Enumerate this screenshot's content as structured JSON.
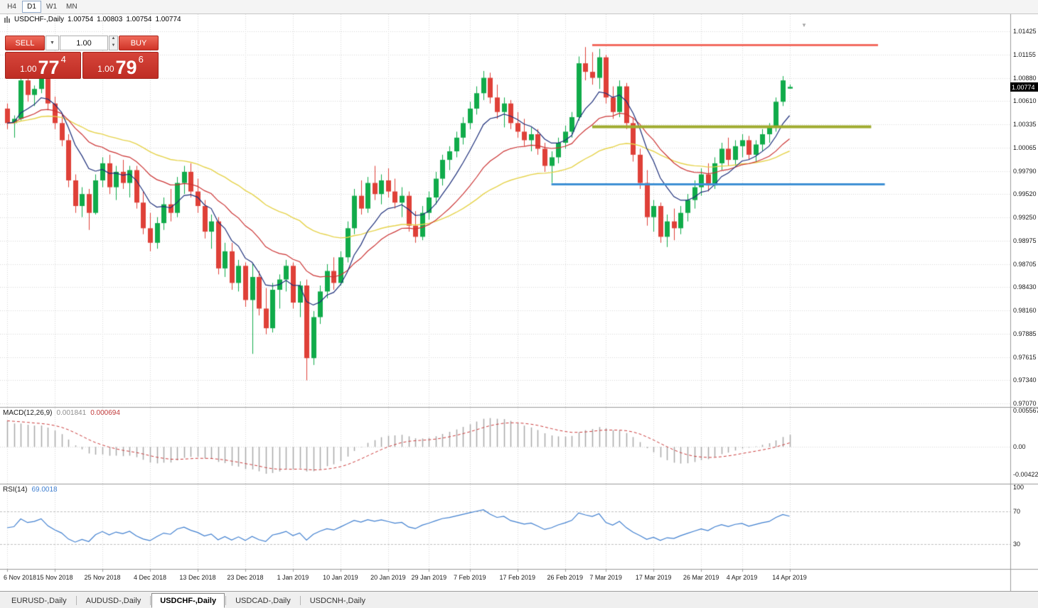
{
  "toolbar": {
    "timeframes": [
      {
        "label": "H4",
        "active": false
      },
      {
        "label": "D1",
        "active": true
      },
      {
        "label": "W1",
        "active": false
      },
      {
        "label": "MN",
        "active": false
      }
    ]
  },
  "chart_header": {
    "symbol": "USDCHF-,Daily",
    "open": "1.00754",
    "high": "1.00803",
    "low": "1.00754",
    "close": "1.00774"
  },
  "trade_panel": {
    "sell_label": "SELL",
    "buy_label": "BUY",
    "volume": "1.00",
    "sell_price": {
      "prefix": "1.00",
      "big": "77",
      "sup": "4"
    },
    "buy_price": {
      "prefix": "1.00",
      "big": "79",
      "sup": "6"
    }
  },
  "icons": {
    "volume_dropdown": "▼",
    "spin_up": "▲",
    "spin_down": "▼",
    "chart_shift": "▼"
  },
  "price_tag": "1.00774",
  "macd_header": {
    "name": "MACD(12,26,9)",
    "value": "0.001841",
    "signal": "0.000694"
  },
  "rsi_header": {
    "name": "RSI(14)",
    "value": "69.0018"
  },
  "tabbar": {
    "tabs": [
      {
        "label": "EURUSD-,Daily",
        "active": false
      },
      {
        "label": "AUDUSD-,Daily",
        "active": false
      },
      {
        "label": "USDCHF-,Daily",
        "active": true
      },
      {
        "label": "USDCAD-,Daily",
        "active": false
      },
      {
        "label": "USDCNH-,Daily",
        "active": false
      }
    ]
  },
  "chart_data": {
    "type": "candlestick",
    "symbol": "USDCHF-",
    "timeframe": "Daily",
    "current_price": 1.00774,
    "price_axis_ticks": [
      1.01425,
      1.01155,
      1.0088,
      1.0061,
      1.00335,
      1.00065,
      0.9979,
      0.9952,
      0.9925,
      0.98975,
      0.98705,
      0.9843,
      0.9816,
      0.97885,
      0.97615,
      0.9734,
      0.9707
    ],
    "macd_axis_labels": {
      "top": "0.0055677",
      "zero": "0.00",
      "bottom": "-0.0042264"
    },
    "rsi_axis_labels": {
      "top": "100",
      "upper": "70",
      "lower": "30"
    },
    "rsi_levels": [
      70,
      30
    ],
    "date_ticks": [
      {
        "label": "6 Nov 2018",
        "index": 0
      },
      {
        "label": "15 Nov 2018",
        "index": 7
      },
      {
        "label": "25 Nov 2018",
        "index": 14
      },
      {
        "label": "4 Dec 2018",
        "index": 21
      },
      {
        "label": "13 Dec 2018",
        "index": 28
      },
      {
        "label": "23 Dec 2018",
        "index": 35
      },
      {
        "label": "1 Jan 2019",
        "index": 42
      },
      {
        "label": "10 Jan 2019",
        "index": 49
      },
      {
        "label": "20 Jan 2019",
        "index": 56
      },
      {
        "label": "29 Jan 2019",
        "index": 62
      },
      {
        "label": "7 Feb 2019",
        "index": 68
      },
      {
        "label": "17 Feb 2019",
        "index": 75
      },
      {
        "label": "26 Feb 2019",
        "index": 82
      },
      {
        "label": "7 Mar 2019",
        "index": 88
      },
      {
        "label": "17 Mar 2019",
        "index": 95
      },
      {
        "label": "26 Mar 2019",
        "index": 102
      },
      {
        "label": "4 Apr 2019",
        "index": 108
      },
      {
        "label": "14 Apr 2019",
        "index": 115
      }
    ],
    "candles": [
      [
        1.0052,
        1.0058,
        1.0028,
        1.0035
      ],
      [
        1.0035,
        1.0044,
        1.0018,
        1.004
      ],
      [
        1.004,
        1.009,
        1.0038,
        1.0085
      ],
      [
        1.0085,
        1.0094,
        1.006,
        1.0068
      ],
      [
        1.0068,
        1.0079,
        1.0055,
        1.0075
      ],
      [
        1.0075,
        1.01,
        1.007,
        1.0092
      ],
      [
        1.0092,
        1.0095,
        1.005,
        1.0058
      ],
      [
        1.0058,
        1.0066,
        1.0028,
        1.0035
      ],
      [
        1.0035,
        1.0045,
        1.0008,
        1.0015
      ],
      [
        1.0015,
        1.0022,
        0.996,
        0.9968
      ],
      [
        0.9968,
        0.9975,
        0.993,
        0.9938
      ],
      [
        0.9938,
        0.996,
        0.9925,
        0.9952
      ],
      [
        0.9952,
        0.9958,
        0.991,
        0.993
      ],
      [
        0.993,
        0.9975,
        0.9928,
        0.9968
      ],
      [
        0.9968,
        0.9995,
        0.996,
        0.9988
      ],
      [
        0.9988,
        0.9998,
        0.9952,
        0.996
      ],
      [
        0.996,
        0.9985,
        0.9945,
        0.9978
      ],
      [
        0.9978,
        0.9992,
        0.9958,
        0.9965
      ],
      [
        0.9965,
        0.9985,
        0.9948,
        0.998
      ],
      [
        0.998,
        0.9985,
        0.9935,
        0.9942
      ],
      [
        0.9942,
        0.9955,
        0.9905,
        0.9912
      ],
      [
        0.9912,
        0.993,
        0.9885,
        0.9895
      ],
      [
        0.9895,
        0.9925,
        0.9888,
        0.9918
      ],
      [
        0.9918,
        0.9948,
        0.991,
        0.994
      ],
      [
        0.994,
        0.9958,
        0.992,
        0.993
      ],
      [
        0.993,
        0.9972,
        0.9925,
        0.9965
      ],
      [
        0.9965,
        0.9985,
        0.9952,
        0.9978
      ],
      [
        0.9978,
        0.9988,
        0.9948,
        0.9955
      ],
      [
        0.9955,
        0.997,
        0.993,
        0.9938
      ],
      [
        0.9938,
        0.9945,
        0.99,
        0.9908
      ],
      [
        0.9908,
        0.9928,
        0.9888,
        0.992
      ],
      [
        0.992,
        0.9925,
        0.9858,
        0.9865
      ],
      [
        0.9865,
        0.9895,
        0.9855,
        0.9885
      ],
      [
        0.9885,
        0.9895,
        0.984,
        0.9848
      ],
      [
        0.9848,
        0.9875,
        0.9838,
        0.9868
      ],
      [
        0.9868,
        0.9872,
        0.982,
        0.9828
      ],
      [
        0.9828,
        0.987,
        0.9765,
        0.9855
      ],
      [
        0.9855,
        0.9862,
        0.981,
        0.9818
      ],
      [
        0.9818,
        0.9842,
        0.9788,
        0.9795
      ],
      [
        0.9795,
        0.9848,
        0.979,
        0.984
      ],
      [
        0.984,
        0.9858,
        0.9818,
        0.9852
      ],
      [
        0.9852,
        0.9875,
        0.9838,
        0.9868
      ],
      [
        0.9868,
        0.9872,
        0.9818,
        0.9825
      ],
      [
        0.9825,
        0.985,
        0.9808,
        0.9845
      ],
      [
        0.9845,
        0.9852,
        0.9734,
        0.976
      ],
      [
        0.976,
        0.9815,
        0.9752,
        0.9808
      ],
      [
        0.9808,
        0.9845,
        0.98,
        0.9838
      ],
      [
        0.9838,
        0.987,
        0.983,
        0.9862
      ],
      [
        0.9862,
        0.9878,
        0.984,
        0.9848
      ],
      [
        0.9848,
        0.9885,
        0.9845,
        0.9878
      ],
      [
        0.9878,
        0.992,
        0.9872,
        0.9912
      ],
      [
        0.9912,
        0.9958,
        0.9905,
        0.995
      ],
      [
        0.995,
        0.9968,
        0.9928,
        0.9935
      ],
      [
        0.9935,
        0.9972,
        0.993,
        0.9965
      ],
      [
        0.9965,
        0.9985,
        0.9945,
        0.9952
      ],
      [
        0.9952,
        0.9975,
        0.994,
        0.9968
      ],
      [
        0.9968,
        0.9982,
        0.9948,
        0.9955
      ],
      [
        0.9955,
        0.997,
        0.9935,
        0.9942
      ],
      [
        0.9942,
        0.996,
        0.9925,
        0.995
      ],
      [
        0.995,
        0.9955,
        0.9908,
        0.9915
      ],
      [
        0.9915,
        0.9932,
        0.9895,
        0.9902
      ],
      [
        0.9902,
        0.9938,
        0.9898,
        0.993
      ],
      [
        0.993,
        0.9955,
        0.9922,
        0.9948
      ],
      [
        0.9948,
        0.9978,
        0.994,
        0.997
      ],
      [
        0.997,
        0.9998,
        0.9962,
        0.9992
      ],
      [
        0.9992,
        1.0008,
        0.998,
        1.0002
      ],
      [
        1.0002,
        1.0025,
        0.9995,
        1.0018
      ],
      [
        1.0018,
        1.0042,
        1.001,
        1.0035
      ],
      [
        1.0035,
        1.006,
        1.0028,
        1.0052
      ],
      [
        1.0052,
        1.0078,
        1.0045,
        1.007
      ],
      [
        1.007,
        1.0096,
        1.0062,
        1.0088
      ],
      [
        1.0088,
        1.0094,
        1.0058,
        1.0065
      ],
      [
        1.0065,
        1.008,
        1.004,
        1.0048
      ],
      [
        1.0048,
        1.0065,
        1.003,
        1.0058
      ],
      [
        1.0058,
        1.0062,
        1.0028,
        1.0035
      ],
      [
        1.0035,
        1.0048,
        1.0018,
        1.0025
      ],
      [
        1.0025,
        1.004,
        1.0008,
        1.0015
      ],
      [
        1.0015,
        1.003,
        1.0002,
        1.0022
      ],
      [
        1.0022,
        1.0028,
        0.9998,
        1.0005
      ],
      [
        1.0005,
        1.0012,
        0.9978,
        0.9985
      ],
      [
        0.9985,
        1.0002,
        0.9965,
        0.9995
      ],
      [
        0.9995,
        1.0018,
        0.9988,
        1.0012
      ],
      [
        1.0012,
        1.0032,
        1.0005,
        1.0025
      ],
      [
        1.0025,
        1.0048,
        1.0018,
        1.0042
      ],
      [
        1.0042,
        1.0113,
        1.0038,
        1.0105
      ],
      [
        1.0105,
        1.0124,
        1.0085,
        1.0095
      ],
      [
        1.0095,
        1.0118,
        1.008,
        1.0088
      ],
      [
        1.0088,
        1.0122,
        1.0075,
        1.0112
      ],
      [
        1.0112,
        1.0115,
        1.0058,
        1.0065
      ],
      [
        1.0065,
        1.0078,
        1.004,
        1.0048
      ],
      [
        1.0048,
        1.0085,
        1.0042,
        1.0078
      ],
      [
        1.0078,
        1.0082,
        1.0028,
        1.0035
      ],
      [
        1.0035,
        1.0042,
        0.999,
        0.9998
      ],
      [
        0.9998,
        1.0005,
        0.9958,
        0.9965
      ],
      [
        0.9965,
        0.998,
        0.9915,
        0.9925
      ],
      [
        0.9925,
        0.9945,
        0.9908,
        0.9938
      ],
      [
        0.9938,
        0.9942,
        0.9895,
        0.9902
      ],
      [
        0.9902,
        0.9928,
        0.989,
        0.992
      ],
      [
        0.992,
        0.9935,
        0.9898,
        0.9912
      ],
      [
        0.9912,
        0.9938,
        0.9905,
        0.993
      ],
      [
        0.993,
        0.9952,
        0.992,
        0.9945
      ],
      [
        0.9945,
        0.9968,
        0.9935,
        0.996
      ],
      [
        0.996,
        0.9982,
        0.995,
        0.9975
      ],
      [
        0.9975,
        0.9988,
        0.9955,
        0.9962
      ],
      [
        0.9962,
        0.9995,
        0.9958,
        0.9988
      ],
      [
        0.9988,
        1.0012,
        0.998,
        1.0005
      ],
      [
        1.0005,
        1.0018,
        0.9985,
        0.9992
      ],
      [
        0.9992,
        1.0015,
        0.9985,
        1.0008
      ],
      [
        1.0008,
        1.0022,
        0.9995,
        1.0015
      ],
      [
        1.0015,
        1.002,
        0.9992,
        0.9998
      ],
      [
        0.9998,
        1.0015,
        0.999,
        1.001
      ],
      [
        1.001,
        1.0028,
        1.0002,
        1.0022
      ],
      [
        1.0022,
        1.0035,
        1.0012,
        1.003
      ],
      [
        1.003,
        1.0065,
        1.0025,
        1.006
      ],
      [
        1.006,
        1.009,
        1.0055,
        1.0085
      ],
      [
        1.00754,
        1.00803,
        1.00754,
        1.00774
      ]
    ],
    "overlays": {
      "ma_fast": {
        "period": 8,
        "color": "#1c2e7a"
      },
      "ma_mid": {
        "period": 20,
        "color": "#cc3333"
      },
      "ma_slow": {
        "period": 45,
        "color": "#e6d34a"
      }
    },
    "hlines": [
      {
        "name": "resistance-line",
        "price": 1.0127,
        "color": "#f26b60",
        "width": 3,
        "from_index": 86,
        "to_index": 128
      },
      {
        "name": "mid-line",
        "price": 1.0031,
        "color": "#9fab2e",
        "width": 4,
        "from_index": 86,
        "to_index": 127
      },
      {
        "name": "support-line",
        "price": 0.9964,
        "color": "#3d8fd4",
        "width": 3,
        "from_index": 80,
        "to_index": 129
      }
    ],
    "indicators": {
      "macd": {
        "fast": 12,
        "slow": 26,
        "signal": 9
      },
      "rsi": {
        "period": 14
      }
    },
    "colors": {
      "up": "#10ab4a",
      "down": "#df4038",
      "macd_hist": "#a8a8a8",
      "macd_signal": "#cc3b3b",
      "rsi": "#3f7fd0",
      "grid": "#d9d9d9"
    }
  }
}
